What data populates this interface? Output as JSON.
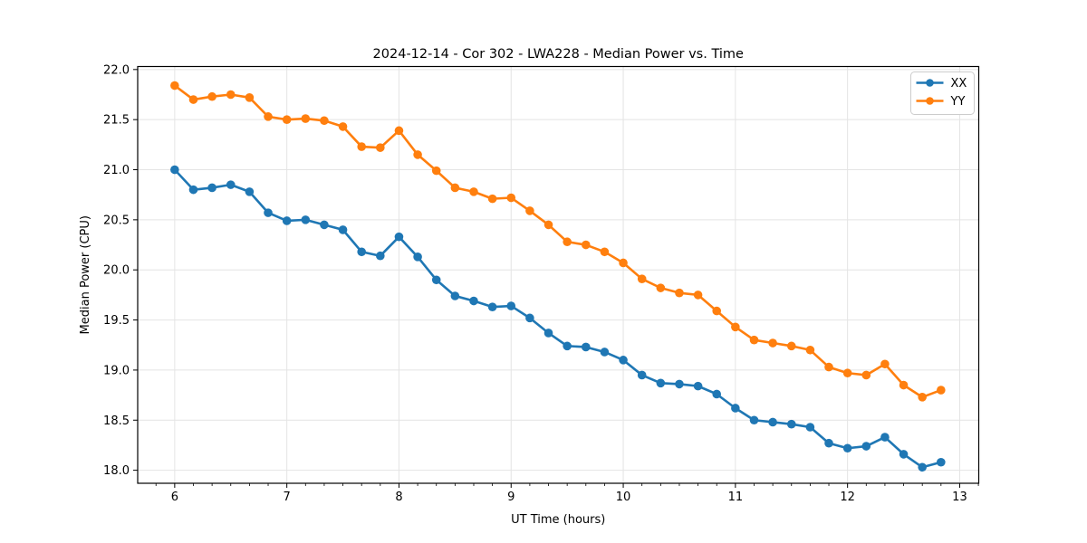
{
  "chart_data": {
    "type": "line",
    "title": "2024-12-14 - Cor 302 - LWA228 - Median Power vs. Time",
    "xlabel": "UT Time (hours)",
    "ylabel": "Median Power (CPU)",
    "xlim": [
      5.67,
      13.17
    ],
    "ylim": [
      17.87,
      22.03
    ],
    "x_ticks": [
      6,
      7,
      8,
      9,
      10,
      11,
      12,
      13
    ],
    "x_tick_labels": [
      "6",
      "7",
      "8",
      "9",
      "10",
      "11",
      "12",
      "13"
    ],
    "x_minor_step": 0.166667,
    "y_ticks": [
      18.0,
      18.5,
      19.0,
      19.5,
      20.0,
      20.5,
      21.0,
      21.5,
      22.0
    ],
    "y_tick_labels": [
      "18.0",
      "18.5",
      "19.0",
      "19.5",
      "20.0",
      "20.5",
      "21.0",
      "21.5",
      "22.0"
    ],
    "grid": true,
    "legend_position": "upper right",
    "x": [
      6,
      6.1667,
      6.3333,
      6.5,
      6.6667,
      6.8333,
      7,
      7.1667,
      7.3333,
      7.5,
      7.6667,
      7.8333,
      8,
      8.1667,
      8.3333,
      8.5,
      8.6667,
      8.8333,
      9,
      9.1667,
      9.3333,
      9.5,
      9.6667,
      9.8333,
      10,
      10.1667,
      10.3333,
      10.5,
      10.6667,
      10.8333,
      11,
      11.1667,
      11.3333,
      11.5,
      11.6667,
      11.8333,
      12,
      12.1667,
      12.3333,
      12.5,
      12.6667,
      12.8333
    ],
    "series": [
      {
        "name": "XX",
        "color": "#1f77b4",
        "values": [
          21.0,
          20.8,
          20.82,
          20.85,
          20.78,
          20.57,
          20.49,
          20.5,
          20.45,
          20.4,
          20.18,
          20.14,
          20.33,
          20.13,
          19.9,
          19.74,
          19.69,
          19.63,
          19.64,
          19.52,
          19.37,
          19.24,
          19.23,
          19.18,
          19.1,
          18.95,
          18.87,
          18.86,
          18.84,
          18.76,
          18.62,
          18.5,
          18.48,
          18.46,
          18.43,
          18.27,
          18.22,
          18.24,
          18.33,
          18.16,
          18.03,
          18.08
        ]
      },
      {
        "name": "YY",
        "color": "#ff7f0e",
        "values": [
          21.84,
          21.7,
          21.73,
          21.75,
          21.72,
          21.53,
          21.5,
          21.51,
          21.49,
          21.43,
          21.23,
          21.22,
          21.39,
          21.15,
          20.99,
          20.82,
          20.78,
          20.71,
          20.72,
          20.59,
          20.45,
          20.28,
          20.25,
          20.18,
          20.07,
          19.91,
          19.82,
          19.77,
          19.75,
          19.59,
          19.43,
          19.3,
          19.27,
          19.24,
          19.2,
          19.03,
          18.97,
          18.95,
          19.06,
          18.85,
          18.73,
          18.8
        ]
      }
    ]
  },
  "colors": {
    "grid": "#e4e4e4",
    "spine": "#000000",
    "tick": "#000000",
    "legend_border": "#cccccc",
    "legend_bg": "#ffffff"
  }
}
